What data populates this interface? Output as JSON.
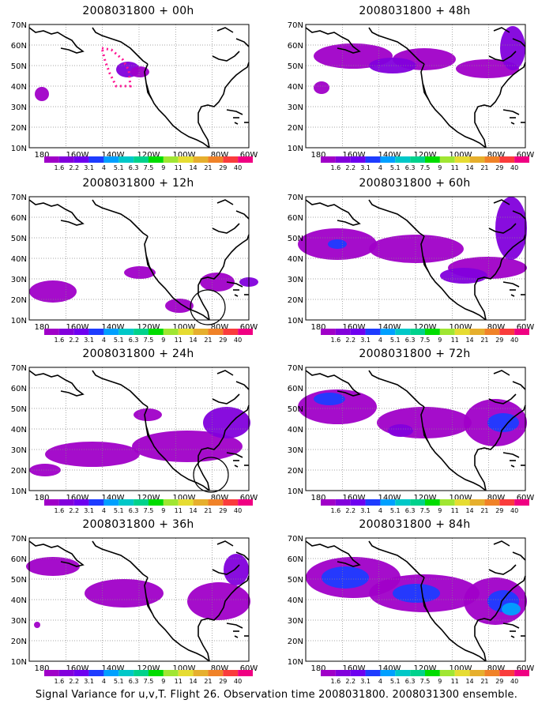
{
  "figure": {
    "caption": "Signal Variance for u,v,T. Flight 26. Observation time 2008031800. 2008031300 ensemble."
  },
  "axes": {
    "lat_labels": [
      "70N",
      "60N",
      "50N",
      "40N",
      "30N",
      "20N",
      "10N"
    ],
    "lon_labels": [
      "180",
      "160W",
      "140W",
      "120W",
      "100W",
      "80W",
      "60W"
    ]
  },
  "colorbar": {
    "levels": [
      "1.6",
      "2.2",
      "3.1",
      "4",
      "5.1",
      "6.3",
      "7.5",
      "9",
      "11",
      "14",
      "21",
      "29",
      "40"
    ],
    "colors": [
      "#a000c8",
      "#8200dc",
      "#6e00f0",
      "#1e3cff",
      "#00a0ff",
      "#00c8c8",
      "#00d28c",
      "#00dc00",
      "#a0e632",
      "#e6dc32",
      "#e6af2d",
      "#f08228",
      "#fa3c3c",
      "#f00082"
    ]
  },
  "panels": [
    {
      "title": "2008031800 + 00h"
    },
    {
      "title": "2008031800 + 48h"
    },
    {
      "title": "2008031800 + 12h"
    },
    {
      "title": "2008031800 + 60h"
    },
    {
      "title": "2008031800 + 24h"
    },
    {
      "title": "2008031800 + 72h"
    },
    {
      "title": "2008031800 + 36h"
    },
    {
      "title": "2008031800 + 84h"
    }
  ]
}
